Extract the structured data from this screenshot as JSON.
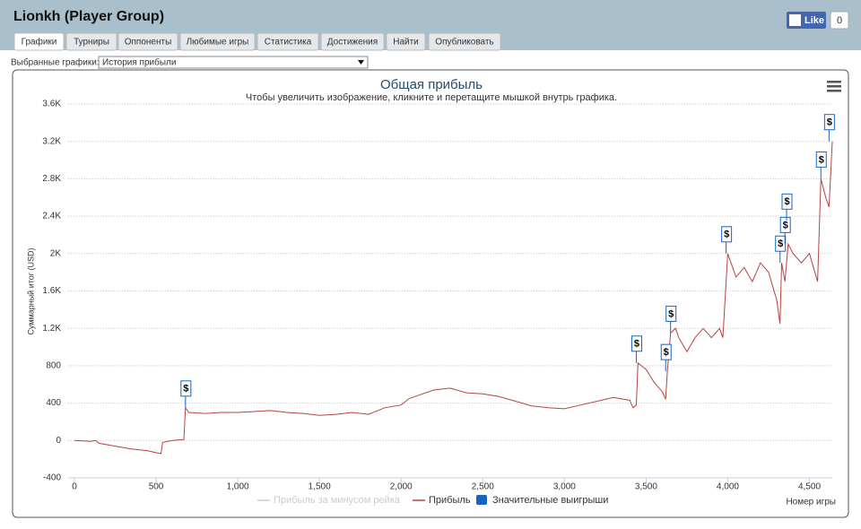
{
  "header": {
    "title": "Lionkh (Player Group)",
    "like": "Like",
    "like_count": "0"
  },
  "tabs": [
    "Графики",
    "Турниры",
    "Оппоненты",
    "Любимые игры",
    "Статистика",
    "Достижения",
    "Найти",
    "Опубликовать"
  ],
  "selector": {
    "label": "Выбранные графики:",
    "value": "История прибыли"
  },
  "chart_data": {
    "type": "line",
    "title": "Общая прибыль",
    "subtitle": "Чтобы увеличить изображение, кликните и перетащите мышкой внутрь графика.",
    "y_label": "Суммарный итог (USD)",
    "x_label": "Номер игры",
    "x": [
      0,
      100,
      130,
      150,
      250,
      350,
      450,
      500,
      530,
      540,
      600,
      670,
      680,
      700,
      800,
      900,
      1000,
      1100,
      1200,
      1300,
      1400,
      1500,
      1600,
      1700,
      1800,
      1900,
      2000,
      2050,
      2100,
      2200,
      2300,
      2400,
      2500,
      2600,
      2700,
      2800,
      2900,
      3000,
      3100,
      3200,
      3300,
      3400,
      3420,
      3440,
      3450,
      3500,
      3550,
      3600,
      3620,
      3630,
      3650,
      3680,
      3700,
      3750,
      3800,
      3850,
      3900,
      3950,
      3970,
      4000,
      4020,
      4050,
      4100,
      4150,
      4200,
      4250,
      4300,
      4320,
      4330,
      4350,
      4370,
      4400,
      4450,
      4500,
      4550,
      4570,
      4600,
      4620,
      4640
    ],
    "series": [
      {
        "name": "Прибыль за минусом рейка",
        "color": "#cccccc"
      },
      {
        "name": "Прибыль",
        "color": "#b5443f",
        "values": [
          0,
          -10,
          0,
          -30,
          -60,
          -90,
          -110,
          -130,
          -140,
          -20,
          0,
          10,
          350,
          300,
          290,
          300,
          300,
          310,
          320,
          300,
          290,
          270,
          280,
          300,
          280,
          350,
          380,
          450,
          480,
          540,
          560,
          510,
          500,
          470,
          420,
          370,
          350,
          340,
          380,
          420,
          460,
          430,
          350,
          380,
          830,
          760,
          620,
          520,
          440,
          740,
          1150,
          1200,
          1100,
          950,
          1100,
          1200,
          1100,
          1200,
          1100,
          2000,
          1900,
          1750,
          1850,
          1700,
          1900,
          1800,
          1500,
          1250,
          1900,
          1700,
          2100,
          2000,
          1900,
          2000,
          1700,
          2800,
          2600,
          2500,
          3200
        ]
      },
      {
        "name": "Значительные выигрыши",
        "color": "#1565c0",
        "type": "flag",
        "text": "$",
        "x": [
          680,
          3440,
          3620,
          3650,
          3990,
          4320,
          4350,
          4360,
          4570,
          4620
        ],
        "values": [
          350,
          830,
          740,
          1150,
          2000,
          1900,
          2100,
          2350,
          2800,
          3200
        ]
      }
    ],
    "xlim": [
      -40,
      4640
    ],
    "ylim": [
      -400,
      3600
    ],
    "xticks": [
      0,
      500,
      {
        "value": 1000,
        "label": "1,000"
      },
      {
        "value": 1500,
        "label": "1,500"
      },
      {
        "value": 2000,
        "label": "2,000"
      },
      {
        "value": 2500,
        "label": "2,500"
      },
      {
        "value": 3000,
        "label": "3,000"
      },
      {
        "value": 3500,
        "label": "3,500"
      },
      {
        "value": 4000,
        "label": "4,000"
      },
      {
        "value": 4500,
        "label": "4,500"
      }
    ],
    "yticks": [
      -400,
      0,
      400,
      800,
      {
        "value": 1200,
        "label": "1.2K"
      },
      {
        "value": 1600,
        "label": "1.6K"
      },
      {
        "value": 2000,
        "label": "2K"
      },
      {
        "value": 2400,
        "label": "2.4K"
      },
      {
        "value": 2800,
        "label": "2.8K"
      },
      {
        "value": 3200,
        "label": "3.2K"
      },
      {
        "value": 3600,
        "label": "3.6K"
      }
    ],
    "grid": true
  }
}
